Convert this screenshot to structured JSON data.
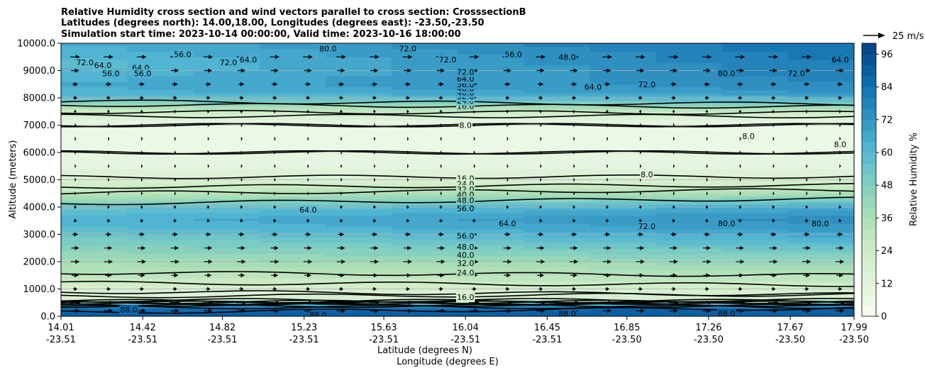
{
  "chart_data": {
    "type": "contourf",
    "title_lines": [
      "Relative Humidity cross section and wind vectors parallel to cross section: CrosssectionB",
      "Latitudes (degrees north): 14.00,18.00, Longitudes (degrees east): -23.50,-23.50",
      "Simulation start time: 2023-10-14 00:00:00, Valid time: 2023-10-16 18:00:00"
    ],
    "ylabel": "Altitude (meters)",
    "xlabel_line1": "Latitude (degrees N)",
    "xlabel_line2": "Longitude (degrees E)",
    "ylim": [
      0,
      10000
    ],
    "xlim": [
      14.01,
      17.99
    ],
    "y_ticks": [
      0,
      1000,
      2000,
      3000,
      4000,
      5000,
      6000,
      7000,
      8000,
      9000,
      10000
    ],
    "y_tick_labels": [
      "0.0",
      "1000.0",
      "2000.0",
      "3000.0",
      "4000.0",
      "5000.0",
      "6000.0",
      "7000.0",
      "8000.0",
      "9000.0",
      "10000.0"
    ],
    "x_ticks": [
      14.01,
      14.42,
      14.82,
      15.23,
      15.63,
      16.04,
      16.45,
      16.85,
      17.26,
      17.67,
      17.99
    ],
    "x_tick_lat_labels": [
      "14.01",
      "14.42",
      "14.82",
      "15.23",
      "15.63",
      "16.04",
      "16.45",
      "16.85",
      "17.26",
      "17.67",
      "17.99"
    ],
    "x_tick_lon_labels": [
      "-23.51",
      "-23.51",
      "-23.51",
      "-23.51",
      "-23.51",
      "-23.51",
      "-23.51",
      "-23.50",
      "-23.50",
      "-23.50",
      "-23.50"
    ],
    "grid": "horizontal",
    "colorbar": {
      "label": "Relative Humidity %",
      "min": 0,
      "max": 100,
      "step": 4,
      "ticks": [
        0,
        12,
        24,
        36,
        48,
        60,
        72,
        84,
        96
      ],
      "tick_labels": [
        "0",
        "12",
        "24",
        "36",
        "48",
        "60",
        "72",
        "84",
        "96"
      ],
      "colormap_stops": [
        "#f7fcf0",
        "#e0f3db",
        "#ccebc5",
        "#a8ddb5",
        "#7bccc4",
        "#4eb3d3",
        "#2b8cbe",
        "#0868ac",
        "#084081"
      ]
    },
    "quiver_key": {
      "label": "25 m/s",
      "speed": 25
    },
    "rh_profile": {
      "altitude": [
        0,
        150,
        300,
        450,
        600,
        800,
        1000,
        1300,
        1600,
        2000,
        2400,
        2800,
        3200,
        3600,
        4000,
        4400,
        4800,
        5200,
        5600,
        6000,
        6500,
        7000,
        7300,
        7600,
        7900,
        8200,
        8500,
        8800,
        9200,
        9600,
        10000
      ],
      "rh_west": [
        90,
        88,
        86,
        60,
        20,
        14,
        18,
        26,
        32,
        38,
        44,
        50,
        58,
        62,
        54,
        36,
        22,
        14,
        10,
        8,
        7,
        8,
        14,
        30,
        50,
        62,
        64,
        62,
        58,
        60,
        64
      ],
      "rh_east": [
        90,
        90,
        88,
        60,
        22,
        16,
        20,
        28,
        34,
        42,
        52,
        62,
        70,
        74,
        66,
        42,
        24,
        14,
        10,
        8,
        7,
        8,
        14,
        34,
        58,
        72,
        76,
        78,
        80,
        82,
        84
      ]
    },
    "contour_levels": [
      8,
      16,
      24,
      32,
      40,
      48,
      56,
      64,
      72,
      80,
      88
    ],
    "contour_labels": [
      {
        "text": "8.0",
        "lat": 16.04,
        "alt": 7000
      },
      {
        "text": "16.0",
        "lat": 16.04,
        "alt": 7700
      },
      {
        "text": "24.0",
        "lat": 16.04,
        "alt": 7900
      },
      {
        "text": "32.0",
        "lat": 16.04,
        "alt": 8050
      },
      {
        "text": "40.0",
        "lat": 16.04,
        "alt": 8200
      },
      {
        "text": "48.0",
        "lat": 16.04,
        "alt": 8350
      },
      {
        "text": "56.0",
        "lat": 16.04,
        "alt": 8500
      },
      {
        "text": "64.0",
        "lat": 16.04,
        "alt": 8700
      },
      {
        "text": "72.0",
        "lat": 16.04,
        "alt": 8950
      },
      {
        "text": "16.0",
        "lat": 16.04,
        "alt": 5050
      },
      {
        "text": "24.0",
        "lat": 16.04,
        "alt": 4850
      },
      {
        "text": "32.0",
        "lat": 16.04,
        "alt": 4650
      },
      {
        "text": "40.0",
        "lat": 16.04,
        "alt": 4450
      },
      {
        "text": "48.0",
        "lat": 16.04,
        "alt": 4250
      },
      {
        "text": "56.0",
        "lat": 16.04,
        "alt": 3950
      },
      {
        "text": "56.0",
        "lat": 16.04,
        "alt": 2950
      },
      {
        "text": "48.0",
        "lat": 16.04,
        "alt": 2550
      },
      {
        "text": "40.0",
        "lat": 16.04,
        "alt": 2250
      },
      {
        "text": "32.0",
        "lat": 16.04,
        "alt": 1950
      },
      {
        "text": "24.0",
        "lat": 16.04,
        "alt": 1600
      },
      {
        "text": "16.0",
        "lat": 16.04,
        "alt": 700
      },
      {
        "text": "88.0",
        "lat": 14.35,
        "alt": 250
      },
      {
        "text": "88.0",
        "lat": 15.3,
        "alt": 50
      },
      {
        "text": "88.0",
        "lat": 16.55,
        "alt": 100
      },
      {
        "text": "88.0",
        "lat": 17.35,
        "alt": 100
      },
      {
        "text": "64.0",
        "lat": 15.25,
        "alt": 3900
      },
      {
        "text": "64.0",
        "lat": 16.25,
        "alt": 3400
      },
      {
        "text": "72.0",
        "lat": 16.95,
        "alt": 3300
      },
      {
        "text": "80.0",
        "lat": 17.35,
        "alt": 3400
      },
      {
        "text": "80.0",
        "lat": 17.82,
        "alt": 3400
      },
      {
        "text": "8.0",
        "lat": 16.95,
        "alt": 5200
      },
      {
        "text": "8.0",
        "lat": 17.46,
        "alt": 6600
      },
      {
        "text": "8.0",
        "lat": 17.92,
        "alt": 6300
      },
      {
        "text": "72.0",
        "lat": 16.95,
        "alt": 8500
      },
      {
        "text": "80.0",
        "lat": 17.35,
        "alt": 8900
      },
      {
        "text": "72.0",
        "lat": 17.7,
        "alt": 8900
      },
      {
        "text": "64.0",
        "lat": 17.92,
        "alt": 9400
      },
      {
        "text": "56.0",
        "lat": 16.28,
        "alt": 9600
      },
      {
        "text": "48.0",
        "lat": 16.55,
        "alt": 9500
      },
      {
        "text": "64.0",
        "lat": 16.68,
        "alt": 8400
      },
      {
        "text": "72.0",
        "lat": 15.95,
        "alt": 9400
      },
      {
        "text": "72.0",
        "lat": 14.85,
        "alt": 9300
      },
      {
        "text": "64.0",
        "lat": 14.95,
        "alt": 9400
      },
      {
        "text": "56.0",
        "lat": 14.62,
        "alt": 9600
      },
      {
        "text": "64.0",
        "lat": 14.41,
        "alt": 9100
      },
      {
        "text": "56.0",
        "lat": 14.42,
        "alt": 8900
      },
      {
        "text": "72.0",
        "lat": 14.13,
        "alt": 9300
      },
      {
        "text": "64.0",
        "lat": 14.22,
        "alt": 9200
      },
      {
        "text": "56.0",
        "lat": 14.26,
        "alt": 8900
      },
      {
        "text": "80.0",
        "lat": 15.35,
        "alt": 9800
      },
      {
        "text": "72.0",
        "lat": 15.75,
        "alt": 9800
      }
    ],
    "wind_rows": [
      {
        "alt": 200,
        "speed": 10
      },
      {
        "alt": 500,
        "speed": 12
      },
      {
        "alt": 1000,
        "speed": 5
      },
      {
        "alt": 1500,
        "speed": 8
      },
      {
        "alt": 2000,
        "speed": 10
      },
      {
        "alt": 2500,
        "speed": 9
      },
      {
        "alt": 3000,
        "speed": 7
      },
      {
        "alt": 3500,
        "speed": 4
      },
      {
        "alt": 4000,
        "speed": 3
      },
      {
        "alt": 4500,
        "speed": 2
      },
      {
        "alt": 5000,
        "speed": 2
      },
      {
        "alt": 5500,
        "speed": 2
      },
      {
        "alt": 6000,
        "speed": 2
      },
      {
        "alt": 6500,
        "speed": 2
      },
      {
        "alt": 7000,
        "speed": 2
      },
      {
        "alt": 7500,
        "speed": 3
      },
      {
        "alt": 8000,
        "speed": 5
      },
      {
        "alt": 8500,
        "speed": 7
      },
      {
        "alt": 9000,
        "speed": 9
      },
      {
        "alt": 9500,
        "speed": 11
      }
    ]
  }
}
